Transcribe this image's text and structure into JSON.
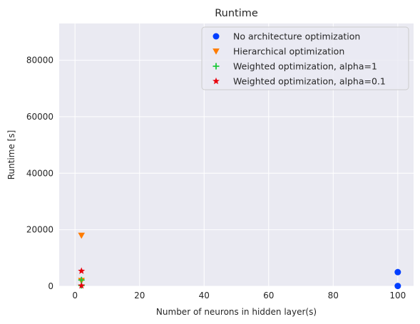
{
  "chart_data": {
    "type": "scatter",
    "title": "Runtime",
    "xlabel": "Number of neurons in hidden layer(s)",
    "ylabel": "Runtime [s]",
    "xlim": [
      -4.9,
      104.9
    ],
    "ylim": [
      0,
      93000
    ],
    "x_ticks": [
      0,
      20,
      40,
      60,
      80,
      100
    ],
    "y_ticks": [
      0,
      20000,
      40000,
      60000,
      80000
    ],
    "grid": true,
    "legend_position": "top-right",
    "series": [
      {
        "name": "No architecture optimization",
        "marker": "circle",
        "color": "#023eff",
        "points": [
          [
            100,
            5000
          ],
          [
            100,
            100
          ]
        ]
      },
      {
        "name": "Hierarchical optimization",
        "marker": "triangle-down",
        "color": "#ff7c00",
        "points": [
          [
            2,
            18000
          ],
          [
            2,
            2000
          ]
        ]
      },
      {
        "name": "Weighted optimization, alpha=1",
        "marker": "plus",
        "color": "#1ac938",
        "points": [
          [
            2,
            2200
          ],
          [
            2,
            300
          ]
        ]
      },
      {
        "name": "Weighted optimization, alpha=0.1",
        "marker": "star",
        "color": "#e8000b",
        "points": [
          [
            2,
            5400
          ],
          [
            2,
            200
          ]
        ]
      }
    ]
  }
}
